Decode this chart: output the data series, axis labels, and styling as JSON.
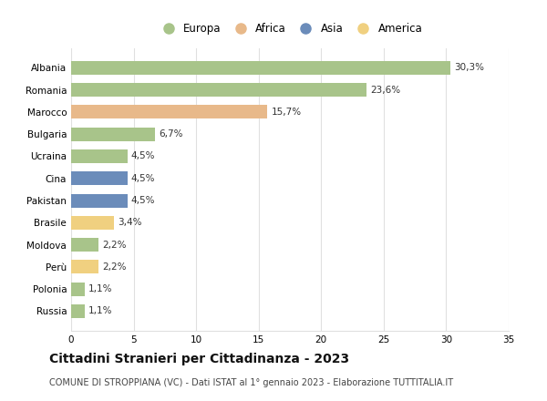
{
  "categories": [
    "Albania",
    "Romania",
    "Marocco",
    "Bulgaria",
    "Ucraina",
    "Cina",
    "Pakistan",
    "Brasile",
    "Moldova",
    "Perù",
    "Polonia",
    "Russia"
  ],
  "values": [
    30.3,
    23.6,
    15.7,
    6.7,
    4.5,
    4.5,
    4.5,
    3.4,
    2.2,
    2.2,
    1.1,
    1.1
  ],
  "labels": [
    "30,3%",
    "23,6%",
    "15,7%",
    "6,7%",
    "4,5%",
    "4,5%",
    "4,5%",
    "3,4%",
    "2,2%",
    "2,2%",
    "1,1%",
    "1,1%"
  ],
  "colors": [
    "#a8c48a",
    "#a8c48a",
    "#e8b98a",
    "#a8c48a",
    "#a8c48a",
    "#6b8cba",
    "#6b8cba",
    "#f0d080",
    "#a8c48a",
    "#f0d080",
    "#a8c48a",
    "#a8c48a"
  ],
  "legend_labels": [
    "Europa",
    "Africa",
    "Asia",
    "America"
  ],
  "legend_colors": [
    "#a8c48a",
    "#e8b98a",
    "#6b8cba",
    "#f0d080"
  ],
  "xlim": [
    0,
    35
  ],
  "xticks": [
    0,
    5,
    10,
    15,
    20,
    25,
    30,
    35
  ],
  "title": "Cittadini Stranieri per Cittadinanza - 2023",
  "subtitle": "COMUNE DI STROPPIANA (VC) - Dati ISTAT al 1° gennaio 2023 - Elaborazione TUTTITALIA.IT",
  "background_color": "#ffffff",
  "grid_color": "#e0e0e0",
  "bar_height": 0.62,
  "label_fontsize": 7.5,
  "tick_fontsize": 7.5,
  "title_fontsize": 10,
  "subtitle_fontsize": 7
}
